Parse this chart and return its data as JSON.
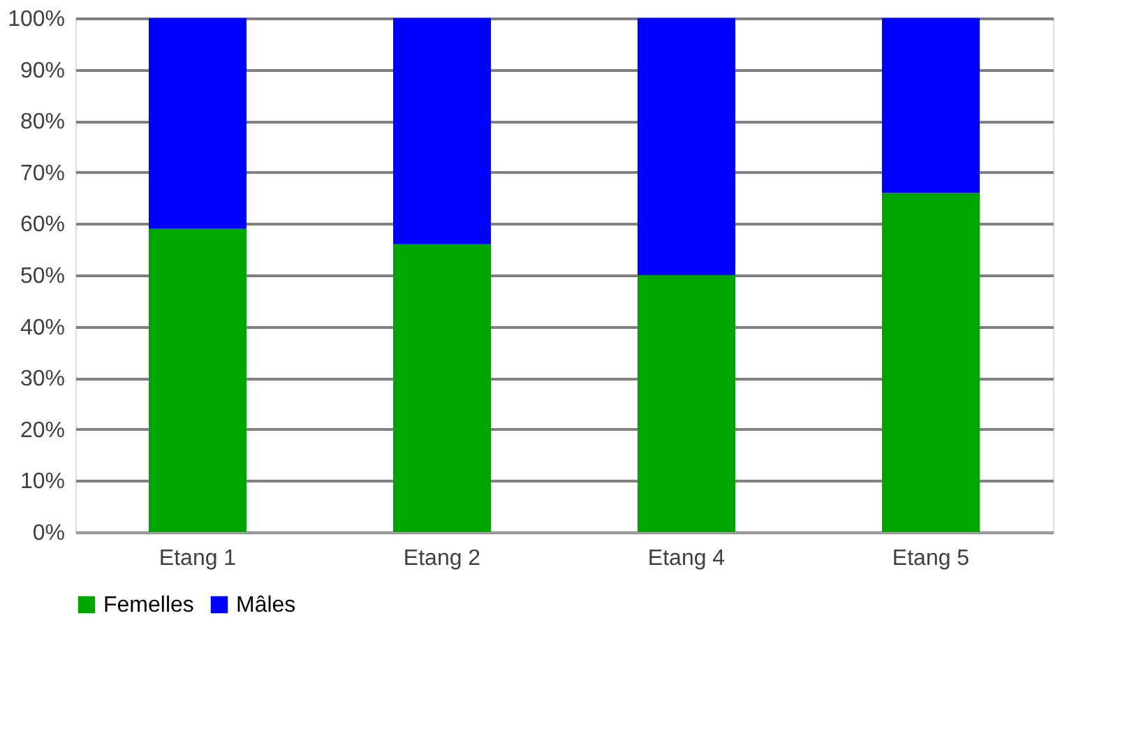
{
  "chart_data": {
    "type": "bar",
    "stacked": true,
    "categories": [
      "Etang 1",
      "Etang 2",
      "Etang 4",
      "Etang 5"
    ],
    "series": [
      {
        "name": "Femelles",
        "color": "#00a600",
        "values": [
          59,
          56,
          50,
          66
        ]
      },
      {
        "name": "Mâles",
        "color": "#0000ff",
        "values": [
          41,
          44,
          50,
          34
        ]
      }
    ],
    "ylim": [
      0,
      100
    ],
    "yticks": [
      {
        "value": 0,
        "label": "0%"
      },
      {
        "value": 10,
        "label": "10%"
      },
      {
        "value": 20,
        "label": "20%"
      },
      {
        "value": 30,
        "label": "30%"
      },
      {
        "value": 40,
        "label": "40%"
      },
      {
        "value": 50,
        "label": "50%"
      },
      {
        "value": 60,
        "label": "60%"
      },
      {
        "value": 70,
        "label": "70%"
      },
      {
        "value": 80,
        "label": "80%"
      },
      {
        "value": 90,
        "label": "90%"
      },
      {
        "value": 100,
        "label": "100%"
      }
    ],
    "grid": "y",
    "legend": "bottom"
  }
}
